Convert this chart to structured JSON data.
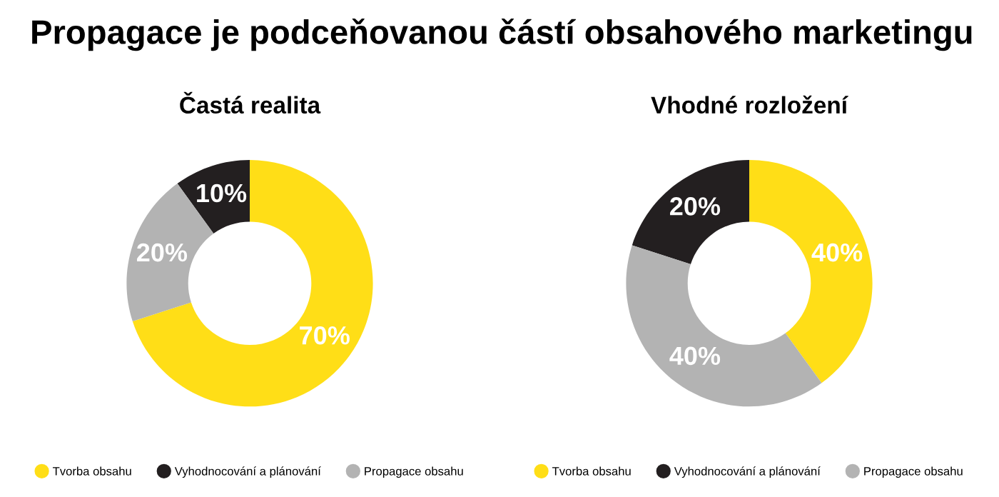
{
  "chart_data": [
    {
      "type": "donut",
      "title": "Propagace je podceňovanou částí obsahového marketingu",
      "subtitle": "Častá realita",
      "categories": [
        "Tvorba obsahu",
        "Vyhodnocování a plánování",
        "Propagace obsahu"
      ],
      "values": [
        70,
        10,
        20
      ],
      "colors": [
        "#ffde17",
        "#231f20",
        "#b3b3b3"
      ],
      "value_labels": [
        "70%",
        "10%",
        "20%"
      ],
      "legend": "bottom"
    },
    {
      "type": "donut",
      "subtitle": "Vhodné rozložení",
      "categories": [
        "Tvorba obsahu",
        "Vyhodnocování a plánování",
        "Propagace obsahu"
      ],
      "values": [
        40,
        20,
        40
      ],
      "colors": [
        "#ffde17",
        "#231f20",
        "#b3b3b3"
      ],
      "value_labels": [
        "40%",
        "20%",
        "40%"
      ],
      "legend": "bottom"
    }
  ]
}
